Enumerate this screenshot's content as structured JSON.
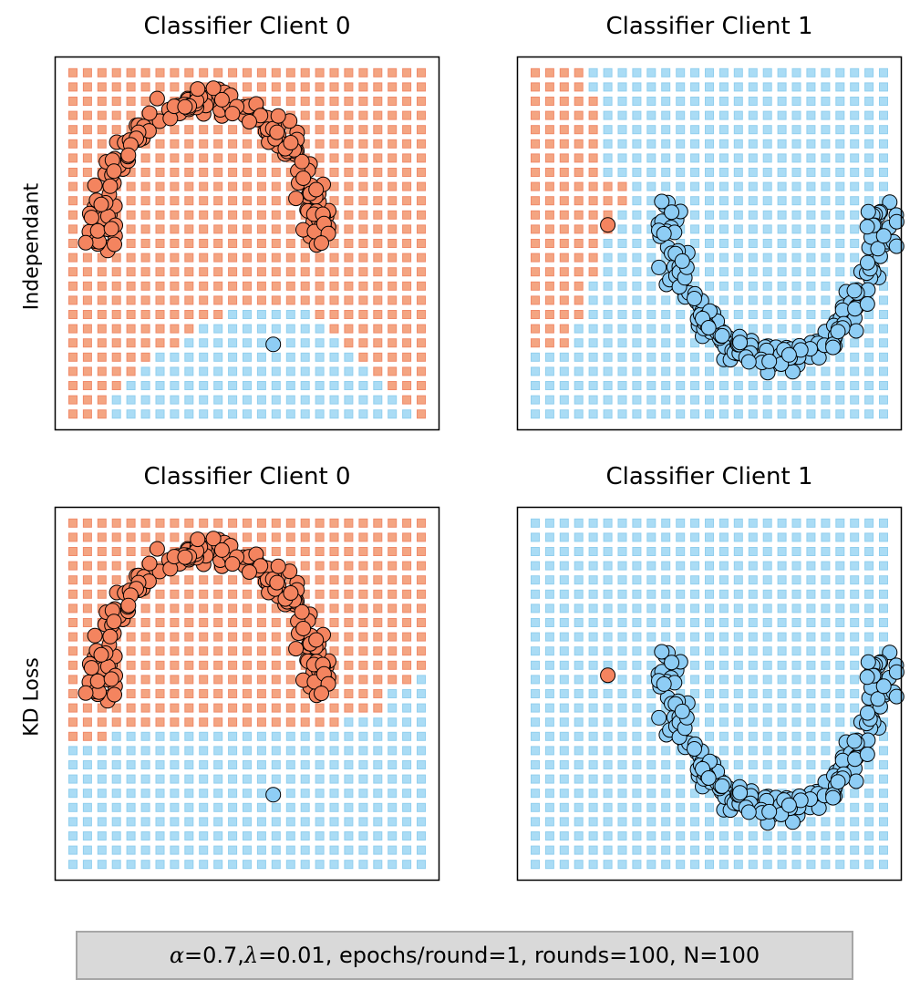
{
  "colors": {
    "class0_grid": "#f4a582",
    "class0_grid_edge": "#f08a6a",
    "class1_grid": "#aadcf5",
    "class1_grid_edge": "#92cfee",
    "class0_point": "#f4845f",
    "class1_point": "#8ecdf5",
    "point_edge": "#000000"
  },
  "row_labels": [
    "Independant",
    "KD Loss"
  ],
  "footer": {
    "alpha_sym": "α",
    "alpha_val": "=0.7, ",
    "lambda_sym": "λ",
    "rest": "=0.01, epochs/round=1, rounds=100, N=100"
  },
  "chart_data": [
    {
      "type": "scatter",
      "title": "Classifier Client 0",
      "row": "Independant",
      "xlim": [
        0,
        25
      ],
      "ylim": [
        0,
        25
      ],
      "grid_on": false,
      "background_grid": {
        "cols": 25,
        "rows": 25,
        "class1_regions": [
          {
            "rows": [
              17,
              17
            ],
            "cols": [
              11,
              16
            ]
          },
          {
            "rows": [
              18,
              18
            ],
            "cols": [
              9,
              17
            ]
          },
          {
            "rows": [
              19,
              19
            ],
            "cols": [
              8,
              18
            ]
          },
          {
            "rows": [
              20,
              20
            ],
            "cols": [
              6,
              19
            ]
          },
          {
            "rows": [
              21,
              21
            ],
            "cols": [
              5,
              20
            ]
          },
          {
            "rows": [
              22,
              22
            ],
            "cols": [
              4,
              21
            ]
          },
          {
            "rows": [
              23,
              23
            ],
            "cols": [
              3,
              22
            ]
          },
          {
            "rows": [
              24,
              24
            ],
            "cols": [
              3,
              23
            ]
          }
        ]
      },
      "series": [
        {
          "label_class": 0,
          "shape": "arch",
          "center": [
            10,
            6
          ],
          "rx": 7.5,
          "ry": 8,
          "n": 200
        },
        {
          "label_class": 1,
          "points": [
            [
              14.3,
              19.6
            ]
          ]
        }
      ]
    },
    {
      "type": "scatter",
      "title": "Classifier Client 1",
      "row": "Independant",
      "xlim": [
        0,
        25
      ],
      "ylim": [
        0,
        25
      ],
      "grid_on": false,
      "background_grid": {
        "cols": 25,
        "rows": 25,
        "class0_regions": [
          {
            "rows": [
              0,
              1
            ],
            "cols": [
              0,
              3
            ]
          },
          {
            "rows": [
              2,
              7
            ],
            "cols": [
              0,
              4
            ]
          },
          {
            "rows": [
              8,
              9
            ],
            "cols": [
              0,
              6
            ]
          },
          {
            "rows": [
              10,
              11
            ],
            "cols": [
              0,
              5
            ]
          },
          {
            "rows": [
              12,
              14
            ],
            "cols": [
              0,
              4
            ]
          },
          {
            "rows": [
              15,
              17
            ],
            "cols": [
              0,
              3
            ]
          },
          {
            "rows": [
              18,
              19
            ],
            "cols": [
              0,
              2
            ]
          }
        ]
      },
      "series": [
        {
          "label_class": 0,
          "points": [
            [
              5.5,
              11.2
            ]
          ]
        },
        {
          "label_class": 1,
          "shape": "valley",
          "center": [
            17,
            8
          ],
          "rx": 7.5,
          "ry": 11,
          "n": 200
        }
      ]
    },
    {
      "type": "scatter",
      "title": "Classifier Client 0",
      "row": "KD Loss",
      "xlim": [
        0,
        25
      ],
      "ylim": [
        0,
        25
      ],
      "grid_on": false,
      "background_grid": {
        "cols": 25,
        "rows": 25,
        "class1_regions": [
          {
            "rows": [
              11,
              11
            ],
            "cols": [
              24,
              24
            ]
          },
          {
            "rows": [
              12,
              13
            ],
            "cols": [
              22,
              24
            ]
          },
          {
            "rows": [
              14,
              14
            ],
            "cols": [
              19,
              24
            ]
          },
          {
            "rows": [
              15,
              15
            ],
            "cols": [
              3,
              24
            ]
          },
          {
            "rows": [
              16,
              24
            ],
            "cols": [
              0,
              24
            ]
          }
        ]
      },
      "series": [
        {
          "label_class": 0,
          "shape": "arch",
          "center": [
            10,
            6
          ],
          "rx": 7.5,
          "ry": 8,
          "n": 200
        },
        {
          "label_class": 1,
          "points": [
            [
              14.3,
              19.6
            ]
          ]
        }
      ]
    },
    {
      "type": "scatter",
      "title": "Classifier Client 1",
      "row": "KD Loss",
      "xlim": [
        0,
        25
      ],
      "ylim": [
        0,
        25
      ],
      "grid_on": false,
      "background_grid": {
        "cols": 25,
        "rows": 25,
        "class0_regions": []
      },
      "series": [
        {
          "label_class": 0,
          "points": [
            [
              5.5,
              11.2
            ]
          ]
        },
        {
          "label_class": 1,
          "shape": "valley",
          "center": [
            17,
            8
          ],
          "rx": 7.5,
          "ry": 11,
          "n": 200
        }
      ]
    }
  ]
}
